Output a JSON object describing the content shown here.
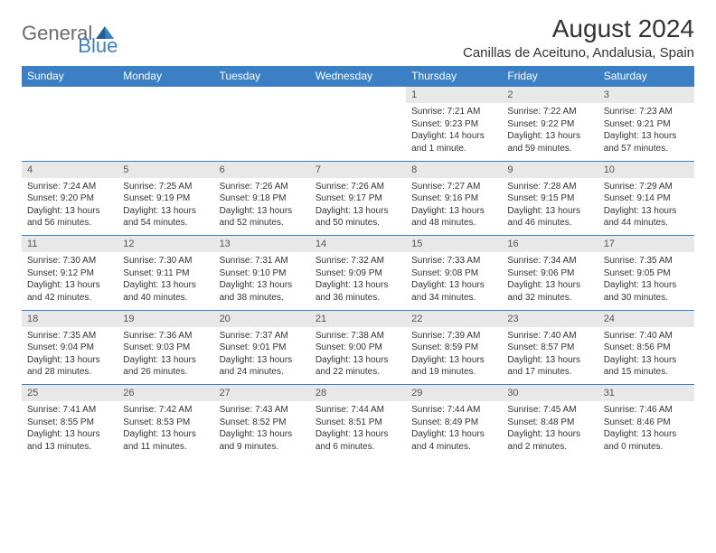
{
  "logo": {
    "text1": "General",
    "text2": "Blue"
  },
  "title": "August 2024",
  "location": "Canillas de Aceituno, Andalusia, Spain",
  "colors": {
    "header_bg": "#3b7fc4",
    "header_text": "#ffffff",
    "daynum_bg": "#e8e8e8",
    "cell_border": "#3b7fc4",
    "logo_gray": "#6b6b6b",
    "logo_blue": "#3b7fc4"
  },
  "day_headers": [
    "Sunday",
    "Monday",
    "Tuesday",
    "Wednesday",
    "Thursday",
    "Friday",
    "Saturday"
  ],
  "weeks": [
    [
      null,
      null,
      null,
      null,
      {
        "n": "1",
        "sr": "7:21 AM",
        "ss": "9:23 PM",
        "dl": "14 hours and 1 minute."
      },
      {
        "n": "2",
        "sr": "7:22 AM",
        "ss": "9:22 PM",
        "dl": "13 hours and 59 minutes."
      },
      {
        "n": "3",
        "sr": "7:23 AM",
        "ss": "9:21 PM",
        "dl": "13 hours and 57 minutes."
      }
    ],
    [
      {
        "n": "4",
        "sr": "7:24 AM",
        "ss": "9:20 PM",
        "dl": "13 hours and 56 minutes."
      },
      {
        "n": "5",
        "sr": "7:25 AM",
        "ss": "9:19 PM",
        "dl": "13 hours and 54 minutes."
      },
      {
        "n": "6",
        "sr": "7:26 AM",
        "ss": "9:18 PM",
        "dl": "13 hours and 52 minutes."
      },
      {
        "n": "7",
        "sr": "7:26 AM",
        "ss": "9:17 PM",
        "dl": "13 hours and 50 minutes."
      },
      {
        "n": "8",
        "sr": "7:27 AM",
        "ss": "9:16 PM",
        "dl": "13 hours and 48 minutes."
      },
      {
        "n": "9",
        "sr": "7:28 AM",
        "ss": "9:15 PM",
        "dl": "13 hours and 46 minutes."
      },
      {
        "n": "10",
        "sr": "7:29 AM",
        "ss": "9:14 PM",
        "dl": "13 hours and 44 minutes."
      }
    ],
    [
      {
        "n": "11",
        "sr": "7:30 AM",
        "ss": "9:12 PM",
        "dl": "13 hours and 42 minutes."
      },
      {
        "n": "12",
        "sr": "7:30 AM",
        "ss": "9:11 PM",
        "dl": "13 hours and 40 minutes."
      },
      {
        "n": "13",
        "sr": "7:31 AM",
        "ss": "9:10 PM",
        "dl": "13 hours and 38 minutes."
      },
      {
        "n": "14",
        "sr": "7:32 AM",
        "ss": "9:09 PM",
        "dl": "13 hours and 36 minutes."
      },
      {
        "n": "15",
        "sr": "7:33 AM",
        "ss": "9:08 PM",
        "dl": "13 hours and 34 minutes."
      },
      {
        "n": "16",
        "sr": "7:34 AM",
        "ss": "9:06 PM",
        "dl": "13 hours and 32 minutes."
      },
      {
        "n": "17",
        "sr": "7:35 AM",
        "ss": "9:05 PM",
        "dl": "13 hours and 30 minutes."
      }
    ],
    [
      {
        "n": "18",
        "sr": "7:35 AM",
        "ss": "9:04 PM",
        "dl": "13 hours and 28 minutes."
      },
      {
        "n": "19",
        "sr": "7:36 AM",
        "ss": "9:03 PM",
        "dl": "13 hours and 26 minutes."
      },
      {
        "n": "20",
        "sr": "7:37 AM",
        "ss": "9:01 PM",
        "dl": "13 hours and 24 minutes."
      },
      {
        "n": "21",
        "sr": "7:38 AM",
        "ss": "9:00 PM",
        "dl": "13 hours and 22 minutes."
      },
      {
        "n": "22",
        "sr": "7:39 AM",
        "ss": "8:59 PM",
        "dl": "13 hours and 19 minutes."
      },
      {
        "n": "23",
        "sr": "7:40 AM",
        "ss": "8:57 PM",
        "dl": "13 hours and 17 minutes."
      },
      {
        "n": "24",
        "sr": "7:40 AM",
        "ss": "8:56 PM",
        "dl": "13 hours and 15 minutes."
      }
    ],
    [
      {
        "n": "25",
        "sr": "7:41 AM",
        "ss": "8:55 PM",
        "dl": "13 hours and 13 minutes."
      },
      {
        "n": "26",
        "sr": "7:42 AM",
        "ss": "8:53 PM",
        "dl": "13 hours and 11 minutes."
      },
      {
        "n": "27",
        "sr": "7:43 AM",
        "ss": "8:52 PM",
        "dl": "13 hours and 9 minutes."
      },
      {
        "n": "28",
        "sr": "7:44 AM",
        "ss": "8:51 PM",
        "dl": "13 hours and 6 minutes."
      },
      {
        "n": "29",
        "sr": "7:44 AM",
        "ss": "8:49 PM",
        "dl": "13 hours and 4 minutes."
      },
      {
        "n": "30",
        "sr": "7:45 AM",
        "ss": "8:48 PM",
        "dl": "13 hours and 2 minutes."
      },
      {
        "n": "31",
        "sr": "7:46 AM",
        "ss": "8:46 PM",
        "dl": "13 hours and 0 minutes."
      }
    ]
  ],
  "labels": {
    "sunrise": "Sunrise:",
    "sunset": "Sunset:",
    "daylight": "Daylight:"
  }
}
